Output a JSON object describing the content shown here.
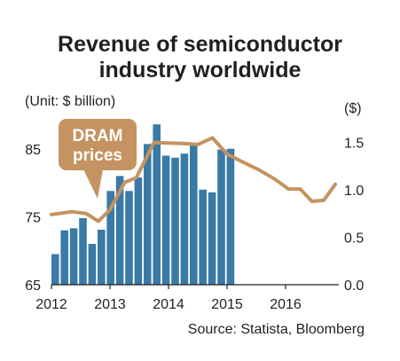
{
  "title_line1": "Revenue of semiconductor",
  "title_line2": "industry worldwide",
  "unit_left": "(Unit: $ billion)",
  "unit_right": "($)",
  "source": "Source: Statista, Bloomberg",
  "callout": [
    "DRAM",
    "prices"
  ],
  "colors": {
    "bar": "#3a7aa6",
    "line": "#c49361",
    "callout": "#c49361",
    "text": "#231f20"
  },
  "chart_data": {
    "type": "bar",
    "title": "Revenue of semiconductor industry worldwide",
    "xlabel": "",
    "ylabel": "(Unit: $ billion)",
    "y2label": "($)",
    "x_ticks": [
      "2012",
      "2013",
      "2014",
      "2015",
      "2016"
    ],
    "y_ticks": [
      "65",
      "75",
      "85"
    ],
    "y2_ticks": [
      "0.0",
      "0.5",
      "1.0",
      "1.5"
    ],
    "ylim": [
      65,
      91.5
    ],
    "y2lim": [
      0,
      1.9
    ],
    "grid": false,
    "series": [
      {
        "name": "Revenue",
        "kind": "bar",
        "axis": "left",
        "x": [
          "2012 Q1",
          "2012 Q2",
          "2012 Q3",
          "2012 Q4",
          "2013 Q1",
          "2013 Q2",
          "2013 Q3",
          "2013 Q4",
          "2014 Q1",
          "2014 Q2",
          "2014 Q3",
          "2014 Q4",
          "2015 Q1",
          "2015 Q2",
          "2015 Q3",
          "2015 Q4",
          "2016 Q1",
          "2016 Q2",
          "2016 Q3",
          "2016 Q4"
        ],
        "values": [
          69.5,
          73.0,
          73.3,
          74.8,
          71.0,
          73.1,
          78.8,
          81.0,
          78.8,
          80.8,
          85.7,
          88.6,
          84.0,
          83.7,
          84.3,
          85.5,
          79.0,
          78.6,
          84.9,
          85.0
        ]
      },
      {
        "name": "DRAM prices",
        "kind": "line",
        "axis": "right",
        "x": [
          2012.0,
          2012.35,
          2012.6,
          2012.8,
          2013.0,
          2013.25,
          2013.45,
          2013.75,
          2014.25,
          2014.5,
          2014.75,
          2015.0,
          2015.25,
          2015.55,
          2015.8,
          2016.05,
          2016.25,
          2016.45,
          2016.65,
          2016.85
        ],
        "values": [
          0.74,
          0.77,
          0.75,
          0.67,
          0.79,
          1.08,
          1.13,
          1.5,
          1.49,
          1.48,
          1.55,
          1.38,
          1.3,
          1.21,
          1.12,
          1.01,
          1.01,
          0.88,
          0.89,
          1.06
        ]
      }
    ]
  }
}
